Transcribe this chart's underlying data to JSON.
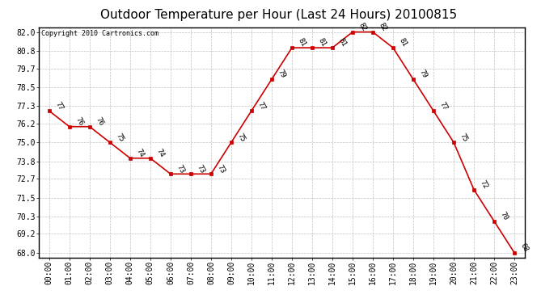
{
  "title": "Outdoor Temperature per Hour (Last 24 Hours) 20100815",
  "copyright": "Copyright 2010 Cartronics.com",
  "hours": [
    "00:00",
    "01:00",
    "02:00",
    "03:00",
    "04:00",
    "05:00",
    "06:00",
    "07:00",
    "08:00",
    "09:00",
    "10:00",
    "11:00",
    "12:00",
    "13:00",
    "14:00",
    "15:00",
    "16:00",
    "17:00",
    "18:00",
    "19:00",
    "20:00",
    "21:00",
    "22:00",
    "23:00"
  ],
  "temps": [
    77,
    76,
    76,
    75,
    74,
    74,
    73,
    73,
    73,
    75,
    77,
    79,
    81,
    81,
    81,
    82,
    82,
    81,
    79,
    77,
    75,
    72,
    70,
    68
  ],
  "line_color": "#cc0000",
  "marker_color": "#cc0000",
  "bg_color": "#ffffff",
  "grid_color": "#b0b0b0",
  "title_fontsize": 11,
  "label_fontsize": 7,
  "annotation_fontsize": 6.5,
  "ylim_min": 68.0,
  "ylim_max": 82.0,
  "yticks": [
    68.0,
    69.2,
    70.3,
    71.5,
    72.7,
    73.8,
    75.0,
    76.2,
    77.3,
    78.5,
    79.7,
    80.8,
    82.0
  ]
}
